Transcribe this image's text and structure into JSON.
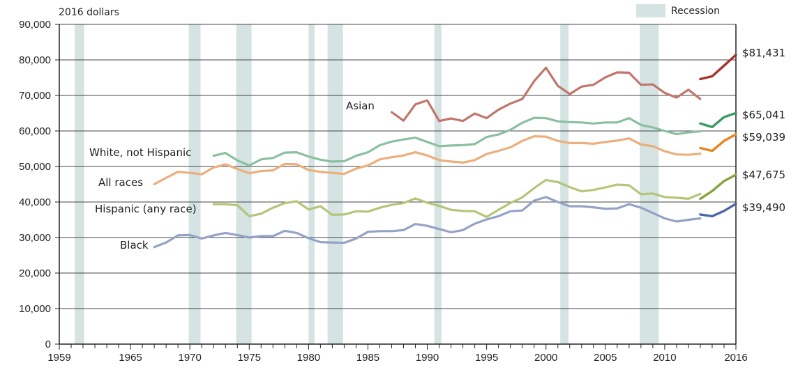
{
  "chart_data": {
    "type": "line",
    "unit_label": "2016 dollars",
    "legend": {
      "recession_label": "Recession",
      "recession_color": "#d5e3e3",
      "placement": "top-right"
    },
    "xlim": [
      1959,
      2016
    ],
    "ylim": [
      0,
      90000
    ],
    "y_ticks": [
      0,
      10000,
      20000,
      30000,
      40000,
      50000,
      60000,
      70000,
      80000,
      90000
    ],
    "y_tick_labels": [
      "0",
      "10,000",
      "20,000",
      "30,000",
      "40,000",
      "50,000",
      "60,000",
      "70,000",
      "80,000",
      "90,000"
    ],
    "x_tick_labels": [
      "1959",
      "1965",
      "1970",
      "1975",
      "1980",
      "1985",
      "1990",
      "1995",
      "2000",
      "2005",
      "2010",
      "2016"
    ],
    "x_tick_values": [
      1959,
      1965,
      1970,
      1975,
      1980,
      1985,
      1990,
      1995,
      2000,
      2005,
      2010,
      2016
    ],
    "gridlines": true,
    "recessions": [
      [
        1960.3,
        1961.1
      ],
      [
        1969.9,
        1970.9
      ],
      [
        1973.9,
        1975.2
      ],
      [
        1980.0,
        1980.5
      ],
      [
        1981.6,
        1982.9
      ],
      [
        1990.6,
        1991.2
      ],
      [
        2001.2,
        2001.9
      ],
      [
        2007.9,
        2009.5
      ]
    ],
    "series": [
      {
        "name": "Asian",
        "color": "#c0766c",
        "color_new": "#a3342c",
        "end_label": "$81,431",
        "values": [
          [
            1987,
            65300
          ],
          [
            1988,
            62900
          ],
          [
            1989,
            67500
          ],
          [
            1990,
            68600
          ],
          [
            1991,
            62800
          ],
          [
            1992,
            63500
          ],
          [
            1993,
            62800
          ],
          [
            1994,
            64900
          ],
          [
            1995,
            63600
          ],
          [
            1996,
            66000
          ],
          [
            1997,
            67700
          ],
          [
            1998,
            69000
          ],
          [
            1999,
            74000
          ],
          [
            2000,
            77800
          ],
          [
            2001,
            72700
          ],
          [
            2002,
            70400
          ],
          [
            2003,
            72500
          ],
          [
            2004,
            73000
          ],
          [
            2005,
            75100
          ],
          [
            2006,
            76500
          ],
          [
            2007,
            76400
          ],
          [
            2008,
            73000
          ],
          [
            2009,
            73100
          ],
          [
            2010,
            70700
          ],
          [
            2011,
            69400
          ],
          [
            2012,
            71600
          ],
          [
            2013,
            69000
          ]
        ],
        "values_new": [
          [
            2013,
            74600
          ],
          [
            2014,
            75400
          ],
          [
            2015,
            78400
          ],
          [
            2016,
            81431
          ]
        ]
      },
      {
        "name": "White, not Hispanic",
        "color": "#8ac0a0",
        "color_new": "#3a9a63",
        "end_label": "$65,041",
        "values": [
          [
            1972,
            53000
          ],
          [
            1973,
            53800
          ],
          [
            1974,
            51700
          ],
          [
            1975,
            50300
          ],
          [
            1976,
            52000
          ],
          [
            1977,
            52400
          ],
          [
            1978,
            53900
          ],
          [
            1979,
            54000
          ],
          [
            1980,
            52800
          ],
          [
            1981,
            51900
          ],
          [
            1982,
            51400
          ],
          [
            1983,
            51500
          ],
          [
            1984,
            53000
          ],
          [
            1985,
            54000
          ],
          [
            1986,
            56000
          ],
          [
            1987,
            57000
          ],
          [
            1988,
            57600
          ],
          [
            1989,
            58100
          ],
          [
            1990,
            56900
          ],
          [
            1991,
            55700
          ],
          [
            1992,
            55900
          ],
          [
            1993,
            56000
          ],
          [
            1994,
            56300
          ],
          [
            1995,
            58300
          ],
          [
            1996,
            59000
          ],
          [
            1997,
            60300
          ],
          [
            1998,
            62300
          ],
          [
            1999,
            63700
          ],
          [
            2000,
            63600
          ],
          [
            2001,
            62700
          ],
          [
            2002,
            62500
          ],
          [
            2003,
            62400
          ],
          [
            2004,
            62100
          ],
          [
            2005,
            62400
          ],
          [
            2006,
            62400
          ],
          [
            2007,
            63600
          ],
          [
            2008,
            61700
          ],
          [
            2009,
            61000
          ],
          [
            2010,
            60000
          ],
          [
            2011,
            59100
          ],
          [
            2012,
            59600
          ],
          [
            2013,
            59900
          ]
        ],
        "values_new": [
          [
            2013,
            62100
          ],
          [
            2014,
            61100
          ],
          [
            2015,
            63900
          ],
          [
            2016,
            65041
          ]
        ]
      },
      {
        "name": "All races",
        "color": "#ecae7c",
        "color_new": "#e8841e",
        "end_label": "$59,039",
        "values": [
          [
            1967,
            45000
          ],
          [
            1968,
            46800
          ],
          [
            1969,
            48500
          ],
          [
            1970,
            48200
          ],
          [
            1971,
            47800
          ],
          [
            1972,
            49700
          ],
          [
            1973,
            50600
          ],
          [
            1974,
            49300
          ],
          [
            1975,
            48100
          ],
          [
            1976,
            48700
          ],
          [
            1977,
            48900
          ],
          [
            1978,
            50700
          ],
          [
            1979,
            50600
          ],
          [
            1980,
            49000
          ],
          [
            1981,
            48500
          ],
          [
            1982,
            48200
          ],
          [
            1983,
            47900
          ],
          [
            1984,
            49400
          ],
          [
            1985,
            50300
          ],
          [
            1986,
            52000
          ],
          [
            1987,
            52600
          ],
          [
            1988,
            53100
          ],
          [
            1989,
            54000
          ],
          [
            1990,
            53100
          ],
          [
            1991,
            51800
          ],
          [
            1992,
            51400
          ],
          [
            1993,
            51100
          ],
          [
            1994,
            51800
          ],
          [
            1995,
            53500
          ],
          [
            1996,
            54400
          ],
          [
            1997,
            55400
          ],
          [
            1998,
            57200
          ],
          [
            1999,
            58500
          ],
          [
            2000,
            58400
          ],
          [
            2001,
            57200
          ],
          [
            2002,
            56600
          ],
          [
            2003,
            56600
          ],
          [
            2004,
            56400
          ],
          [
            2005,
            56900
          ],
          [
            2006,
            57300
          ],
          [
            2007,
            57900
          ],
          [
            2008,
            56200
          ],
          [
            2009,
            55700
          ],
          [
            2010,
            54300
          ],
          [
            2011,
            53400
          ],
          [
            2012,
            53300
          ],
          [
            2013,
            53600
          ]
        ],
        "values_new": [
          [
            2013,
            55200
          ],
          [
            2014,
            54400
          ],
          [
            2015,
            57200
          ],
          [
            2016,
            59039
          ]
        ]
      },
      {
        "name": "Hispanic (any race)",
        "color": "#b3c678",
        "color_new": "#85a53a",
        "end_label": "$47,675",
        "values": [
          [
            1972,
            39400
          ],
          [
            1973,
            39400
          ],
          [
            1974,
            39100
          ],
          [
            1975,
            36000
          ],
          [
            1976,
            36700
          ],
          [
            1977,
            38400
          ],
          [
            1978,
            39700
          ],
          [
            1979,
            40200
          ],
          [
            1980,
            37900
          ],
          [
            1981,
            38800
          ],
          [
            1982,
            36400
          ],
          [
            1983,
            36500
          ],
          [
            1984,
            37400
          ],
          [
            1985,
            37300
          ],
          [
            1986,
            38400
          ],
          [
            1987,
            39200
          ],
          [
            1988,
            39700
          ],
          [
            1989,
            41000
          ],
          [
            1990,
            39800
          ],
          [
            1991,
            38900
          ],
          [
            1992,
            37800
          ],
          [
            1993,
            37500
          ],
          [
            1994,
            37400
          ],
          [
            1995,
            35800
          ],
          [
            1996,
            37800
          ],
          [
            1997,
            39700
          ],
          [
            1998,
            41300
          ],
          [
            1999,
            43900
          ],
          [
            2000,
            46200
          ],
          [
            2001,
            45600
          ],
          [
            2002,
            44200
          ],
          [
            2003,
            43000
          ],
          [
            2004,
            43400
          ],
          [
            2005,
            44100
          ],
          [
            2006,
            44900
          ],
          [
            2007,
            44700
          ],
          [
            2008,
            42200
          ],
          [
            2009,
            42400
          ],
          [
            2010,
            41400
          ],
          [
            2011,
            41200
          ],
          [
            2012,
            40900
          ],
          [
            2013,
            42300
          ]
        ],
        "values_new": [
          [
            2013,
            40900
          ],
          [
            2014,
            43100
          ],
          [
            2015,
            45900
          ],
          [
            2016,
            47675
          ]
        ]
      },
      {
        "name": "Black",
        "color": "#94a2c6",
        "color_new": "#4c67a8",
        "end_label": "$39,490",
        "values": [
          [
            1967,
            27300
          ],
          [
            1968,
            28600
          ],
          [
            1969,
            30600
          ],
          [
            1970,
            30700
          ],
          [
            1971,
            29700
          ],
          [
            1972,
            30600
          ],
          [
            1973,
            31300
          ],
          [
            1974,
            30700
          ],
          [
            1975,
            30000
          ],
          [
            1976,
            30400
          ],
          [
            1977,
            30400
          ],
          [
            1978,
            31900
          ],
          [
            1979,
            31300
          ],
          [
            1980,
            29800
          ],
          [
            1981,
            28700
          ],
          [
            1982,
            28600
          ],
          [
            1983,
            28500
          ],
          [
            1984,
            29700
          ],
          [
            1985,
            31600
          ],
          [
            1986,
            31800
          ],
          [
            1987,
            31800
          ],
          [
            1988,
            32100
          ],
          [
            1989,
            33800
          ],
          [
            1990,
            33300
          ],
          [
            1991,
            32400
          ],
          [
            1992,
            31500
          ],
          [
            1993,
            32100
          ],
          [
            1994,
            33900
          ],
          [
            1995,
            35100
          ],
          [
            1996,
            36000
          ],
          [
            1997,
            37400
          ],
          [
            1998,
            37600
          ],
          [
            1999,
            40400
          ],
          [
            2000,
            41400
          ],
          [
            2001,
            40000
          ],
          [
            2002,
            38800
          ],
          [
            2003,
            38800
          ],
          [
            2004,
            38500
          ],
          [
            2005,
            38100
          ],
          [
            2006,
            38200
          ],
          [
            2007,
            39400
          ],
          [
            2008,
            38400
          ],
          [
            2009,
            36900
          ],
          [
            2010,
            35400
          ],
          [
            2011,
            34500
          ],
          [
            2012,
            35000
          ],
          [
            2013,
            35400
          ]
        ],
        "values_new": [
          [
            2013,
            36500
          ],
          [
            2014,
            36000
          ],
          [
            2015,
            37500
          ],
          [
            2016,
            39490
          ]
        ]
      }
    ]
  }
}
